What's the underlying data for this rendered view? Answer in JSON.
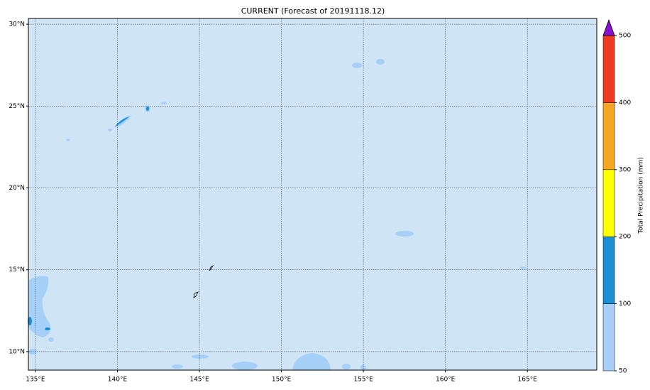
{
  "chart_data": {
    "type": "map",
    "title": "CURRENT (Forecast of 20191118.12)",
    "background": "#cfe5f5",
    "grid": true,
    "xlim": [
      134.57,
      169.23
    ],
    "ylim": [
      8.87,
      30.35
    ],
    "xticks": [
      {
        "value": 135,
        "label": "135°E"
      },
      {
        "value": 140,
        "label": "140°E"
      },
      {
        "value": 145,
        "label": "145°E"
      },
      {
        "value": 150,
        "label": "150°E"
      },
      {
        "value": 155,
        "label": "155°E"
      },
      {
        "value": 160,
        "label": "160°E"
      },
      {
        "value": 165,
        "label": "165°E"
      }
    ],
    "yticks": [
      {
        "value": 10,
        "label": "10°N"
      },
      {
        "value": 15,
        "label": "15°N"
      },
      {
        "value": 20,
        "label": "20°N"
      },
      {
        "value": 25,
        "label": "25°N"
      },
      {
        "value": 30,
        "label": "30°N"
      }
    ],
    "colorbar": {
      "label": "Total Precipitation (mm)",
      "levels": [
        50,
        100,
        200,
        300,
        400,
        500
      ],
      "colors": [
        "#a6d0f8",
        "#1a8fd6",
        "#ffff00",
        "#f5a623",
        "#ee3a23"
      ],
      "extend_color": "#8b0fcf"
    }
  }
}
